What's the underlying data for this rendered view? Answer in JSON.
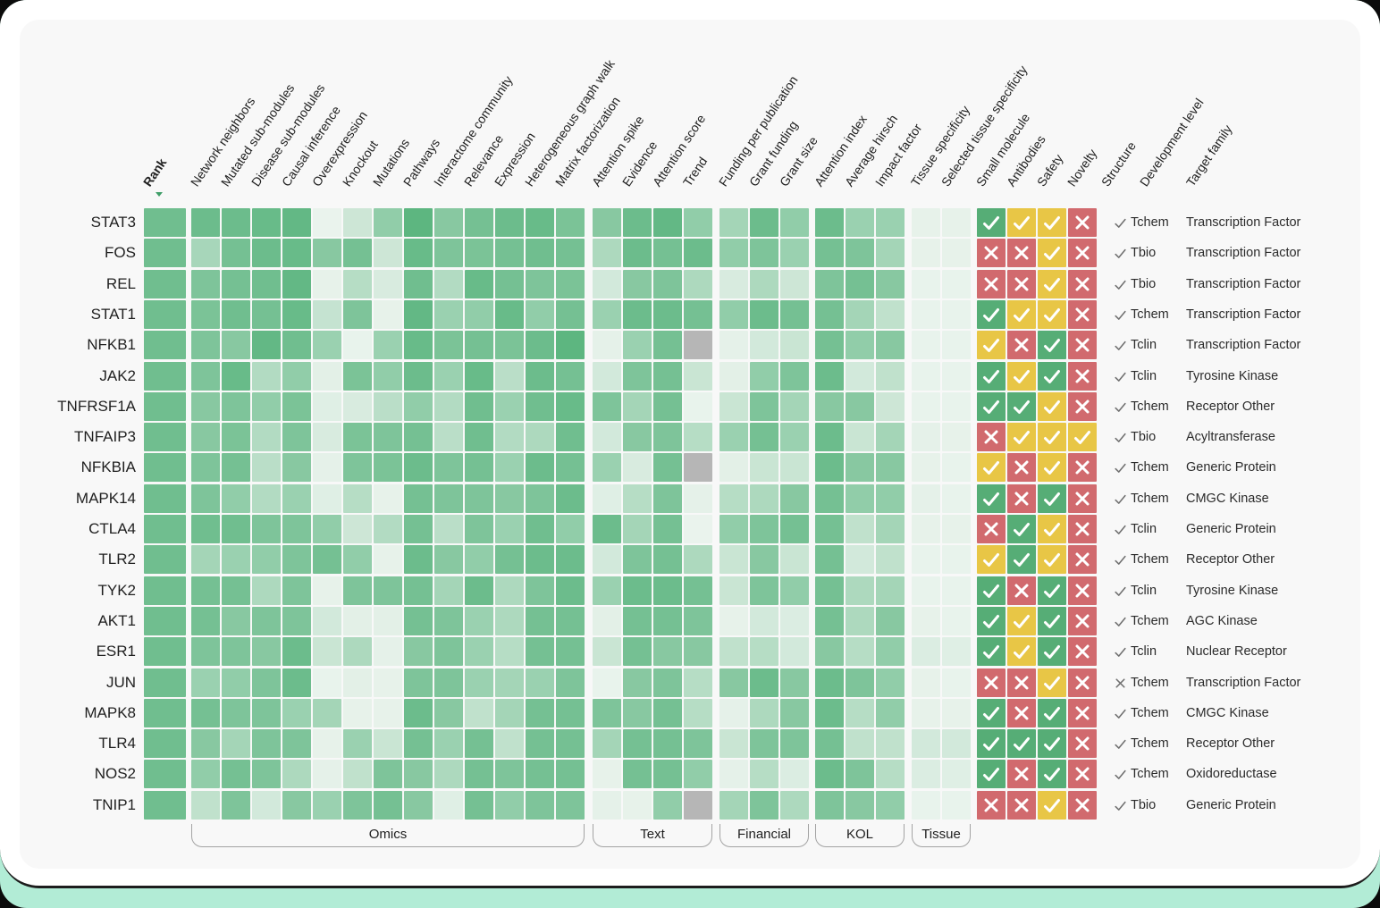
{
  "colors": {
    "frame_mint": "#b2ecd6",
    "card": "#ffffff",
    "surface": "#f8f8f8",
    "card_border": "#1d1d1d",
    "heat_low": "#eef5f0",
    "heat_high": "#34a461",
    "missing_gray": "#b6b6b6",
    "indicator_green": "#56ad76",
    "indicator_yellow": "#e8c646",
    "indicator_red": "#d16a6e",
    "structure_icon": "#6f6f6f",
    "sort_arrow": "#3f9e68",
    "text_primary": "#1f1f1f",
    "bracket_border": "#a3a3a3"
  },
  "rank_column": {
    "label": "Rank",
    "sort_indicator": "desc"
  },
  "groups": [
    {
      "name": "Omics",
      "columns": [
        "Network neighbors",
        "Mutated sub-modules",
        "Disease sub-modules",
        "Causal inference",
        "Overexpression",
        "Knockout",
        "Mutations",
        "Pathways",
        "Interactome community",
        "Relevance",
        "Expression",
        "Heterogeneous graph walk",
        "Matrix factorization"
      ]
    },
    {
      "name": "Text",
      "columns": [
        "Attention spike",
        "Evidence",
        "Attention score",
        "Trend"
      ]
    },
    {
      "name": "Financial",
      "columns": [
        "Funding per publication",
        "Grant funding",
        "Grant size"
      ]
    },
    {
      "name": "KOL",
      "columns": [
        "Attention index",
        "Average hirsch",
        "Impact factor"
      ]
    },
    {
      "name": "Tissue",
      "columns": [
        "Tissue specificity",
        "Selected tissue specificity"
      ]
    }
  ],
  "indicator_columns": [
    "Small molecule",
    "Antibodies",
    "Safety",
    "Novelty"
  ],
  "meta_columns": [
    "Structure",
    "Development level",
    "Target family"
  ],
  "rows": [
    {
      "gene": "STAT3",
      "rank": 0.68,
      "omics": [
        0.7,
        0.7,
        0.72,
        0.75,
        0.02,
        0.18,
        0.5,
        0.78,
        0.55,
        0.65,
        0.7,
        0.72,
        0.62
      ],
      "text": [
        0.55,
        0.7,
        0.75,
        0.5
      ],
      "financial": [
        0.4,
        0.7,
        0.5
      ],
      "kol": [
        0.7,
        0.45,
        0.45
      ],
      "tissue": [
        0.04,
        0.04
      ],
      "indicators": [
        "green-check",
        "yellow-check",
        "yellow-check",
        "red-cross"
      ],
      "structure": "check",
      "development_level": "Tchem",
      "target_family": "Transcription Factor"
    },
    {
      "gene": "FOS",
      "rank": 0.68,
      "omics": [
        0.38,
        0.65,
        0.7,
        0.72,
        0.55,
        0.65,
        0.18,
        0.72,
        0.6,
        0.62,
        0.65,
        0.68,
        0.65
      ],
      "text": [
        0.35,
        0.7,
        0.65,
        0.7
      ],
      "financial": [
        0.5,
        0.6,
        0.45
      ],
      "kol": [
        0.65,
        0.6,
        0.4
      ],
      "tissue": [
        0.04,
        0.04
      ],
      "indicators": [
        "red-cross",
        "red-cross",
        "yellow-check",
        "red-cross"
      ],
      "structure": "check",
      "development_level": "Tbio",
      "target_family": "Transcription Factor"
    },
    {
      "gene": "REL",
      "rank": 0.68,
      "omics": [
        0.6,
        0.65,
        0.68,
        0.75,
        0.04,
        0.3,
        0.12,
        0.68,
        0.32,
        0.72,
        0.65,
        0.6,
        0.62
      ],
      "text": [
        0.15,
        0.55,
        0.6,
        0.35
      ],
      "financial": [
        0.12,
        0.35,
        0.18
      ],
      "kol": [
        0.6,
        0.65,
        0.55
      ],
      "tissue": [
        0.03,
        0.03
      ],
      "indicators": [
        "red-cross",
        "red-cross",
        "yellow-check",
        "red-cross"
      ],
      "structure": "check",
      "development_level": "Tbio",
      "target_family": "Transcription Factor"
    },
    {
      "gene": "STAT1",
      "rank": 0.68,
      "omics": [
        0.62,
        0.68,
        0.65,
        0.72,
        0.22,
        0.6,
        0.04,
        0.75,
        0.45,
        0.5,
        0.72,
        0.5,
        0.65
      ],
      "text": [
        0.45,
        0.7,
        0.7,
        0.65
      ],
      "financial": [
        0.5,
        0.7,
        0.65
      ],
      "kol": [
        0.65,
        0.4,
        0.25
      ],
      "tissue": [
        0.03,
        0.03
      ],
      "indicators": [
        "green-check",
        "yellow-check",
        "yellow-check",
        "red-cross"
      ],
      "structure": "check",
      "development_level": "Tchem",
      "target_family": "Transcription Factor"
    },
    {
      "gene": "NFKB1",
      "rank": 0.68,
      "omics": [
        0.6,
        0.55,
        0.75,
        0.68,
        0.45,
        0.03,
        0.45,
        0.72,
        0.62,
        0.65,
        0.62,
        0.7,
        0.78
      ],
      "text": [
        0.05,
        0.45,
        0.65,
        null
      ],
      "financial": [
        0.05,
        0.15,
        0.2
      ],
      "kol": [
        0.65,
        0.5,
        0.55
      ],
      "tissue": [
        0.03,
        0.03
      ],
      "indicators": [
        "yellow-check",
        "red-cross",
        "green-check",
        "red-cross"
      ],
      "structure": "check",
      "development_level": "Tclin",
      "target_family": "Transcription Factor"
    },
    {
      "gene": "JAK2",
      "rank": 0.68,
      "omics": [
        0.6,
        0.72,
        0.32,
        0.5,
        0.06,
        0.62,
        0.5,
        0.7,
        0.45,
        0.72,
        0.28,
        0.7,
        0.65
      ],
      "text": [
        0.15,
        0.6,
        0.65,
        0.2
      ],
      "financial": [
        0.06,
        0.5,
        0.6
      ],
      "kol": [
        0.7,
        0.15,
        0.25
      ],
      "tissue": [
        0.03,
        0.03
      ],
      "indicators": [
        "green-check",
        "yellow-check",
        "green-check",
        "red-cross"
      ],
      "structure": "check",
      "development_level": "Tclin",
      "target_family": "Tyrosine Kinase"
    },
    {
      "gene": "TNFRSF1A",
      "rank": 0.68,
      "omics": [
        0.55,
        0.6,
        0.5,
        0.62,
        0.08,
        0.12,
        0.28,
        0.5,
        0.32,
        0.68,
        0.45,
        0.68,
        0.72
      ],
      "text": [
        0.6,
        0.4,
        0.65,
        0.03
      ],
      "financial": [
        0.2,
        0.6,
        0.4
      ],
      "kol": [
        0.55,
        0.55,
        0.18
      ],
      "tissue": [
        0.03,
        0.03
      ],
      "indicators": [
        "green-check",
        "green-check",
        "yellow-check",
        "red-cross"
      ],
      "structure": "check",
      "development_level": "Tchem",
      "target_family": "Receptor Other"
    },
    {
      "gene": "TNFAIP3",
      "rank": 0.68,
      "omics": [
        0.55,
        0.62,
        0.32,
        0.6,
        0.12,
        0.62,
        0.6,
        0.65,
        0.28,
        0.68,
        0.32,
        0.35,
        0.68
      ],
      "text": [
        0.15,
        0.55,
        0.6,
        0.3
      ],
      "financial": [
        0.45,
        0.65,
        0.45
      ],
      "kol": [
        0.7,
        0.2,
        0.4
      ],
      "tissue": [
        0.05,
        0.04
      ],
      "indicators": [
        "red-cross",
        "yellow-check",
        "yellow-check",
        "yellow-check"
      ],
      "structure": "check",
      "development_level": "Tbio",
      "target_family": "Acyltransferase"
    },
    {
      "gene": "NFKBIA",
      "rank": 0.68,
      "omics": [
        0.6,
        0.65,
        0.28,
        0.55,
        0.05,
        0.6,
        0.62,
        0.7,
        0.6,
        0.65,
        0.45,
        0.7,
        0.65
      ],
      "text": [
        0.45,
        0.12,
        0.65,
        null
      ],
      "financial": [
        0.06,
        0.2,
        0.2
      ],
      "kol": [
        0.7,
        0.55,
        0.55
      ],
      "tissue": [
        0.04,
        0.03
      ],
      "indicators": [
        "yellow-check",
        "red-cross",
        "yellow-check",
        "red-cross"
      ],
      "structure": "check",
      "development_level": "Tchem",
      "target_family": "Generic Protein"
    },
    {
      "gene": "MAPK14",
      "rank": 0.68,
      "omics": [
        0.6,
        0.5,
        0.32,
        0.45,
        0.08,
        0.3,
        0.04,
        0.65,
        0.6,
        0.6,
        0.55,
        0.6,
        0.7
      ],
      "text": [
        0.08,
        0.3,
        0.6,
        0.05
      ],
      "financial": [
        0.3,
        0.35,
        0.55
      ],
      "kol": [
        0.65,
        0.5,
        0.5
      ],
      "tissue": [
        0.05,
        0.03
      ],
      "indicators": [
        "green-check",
        "red-cross",
        "green-check",
        "red-cross"
      ],
      "structure": "check",
      "development_level": "Tchem",
      "target_family": "CMGC Kinase"
    },
    {
      "gene": "CTLA4",
      "rank": 0.68,
      "omics": [
        0.68,
        0.68,
        0.6,
        0.6,
        0.5,
        0.18,
        0.32,
        0.65,
        0.28,
        0.6,
        0.45,
        0.68,
        0.5
      ],
      "text": [
        0.7,
        0.4,
        0.65,
        0.02
      ],
      "financial": [
        0.5,
        0.6,
        0.65
      ],
      "kol": [
        0.65,
        0.25,
        0.4
      ],
      "tissue": [
        0.04,
        0.04
      ],
      "indicators": [
        "red-cross",
        "green-check",
        "yellow-check",
        "red-cross"
      ],
      "structure": "check",
      "development_level": "Tclin",
      "target_family": "Generic Protein"
    },
    {
      "gene": "TLR2",
      "rank": 0.68,
      "omics": [
        0.4,
        0.45,
        0.5,
        0.6,
        0.65,
        0.5,
        0.04,
        0.7,
        0.55,
        0.5,
        0.65,
        0.7,
        0.7
      ],
      "text": [
        0.15,
        0.6,
        0.65,
        0.35
      ],
      "financial": [
        0.2,
        0.55,
        0.2
      ],
      "kol": [
        0.65,
        0.15,
        0.25
      ],
      "tissue": [
        0.03,
        0.03
      ],
      "indicators": [
        "yellow-check",
        "green-check",
        "yellow-check",
        "red-cross"
      ],
      "structure": "check",
      "development_level": "Tchem",
      "target_family": "Receptor Other"
    },
    {
      "gene": "TYK2",
      "rank": 0.68,
      "omics": [
        0.65,
        0.65,
        0.35,
        0.6,
        0.04,
        0.6,
        0.6,
        0.65,
        0.4,
        0.7,
        0.35,
        0.6,
        0.7
      ],
      "text": [
        0.45,
        0.7,
        0.7,
        0.65
      ],
      "financial": [
        0.2,
        0.6,
        0.5
      ],
      "kol": [
        0.65,
        0.35,
        0.4
      ],
      "tissue": [
        0.03,
        0.03
      ],
      "indicators": [
        "green-check",
        "red-cross",
        "green-check",
        "red-cross"
      ],
      "structure": "check",
      "development_level": "Tclin",
      "target_family": "Tyrosine Kinase"
    },
    {
      "gene": "AKT1",
      "rank": 0.68,
      "omics": [
        0.65,
        0.55,
        0.6,
        0.6,
        0.15,
        0.06,
        0.06,
        0.65,
        0.6,
        0.45,
        0.35,
        0.65,
        0.65
      ],
      "text": [
        0.06,
        0.65,
        0.65,
        0.6
      ],
      "financial": [
        0.04,
        0.15,
        0.1
      ],
      "kol": [
        0.65,
        0.35,
        0.55
      ],
      "tissue": [
        0.04,
        0.03
      ],
      "indicators": [
        "green-check",
        "yellow-check",
        "green-check",
        "red-cross"
      ],
      "structure": "check",
      "development_level": "Tchem",
      "target_family": "AGC Kinase"
    },
    {
      "gene": "ESR1",
      "rank": 0.68,
      "omics": [
        0.6,
        0.6,
        0.55,
        0.7,
        0.2,
        0.35,
        0.05,
        0.55,
        0.6,
        0.45,
        0.3,
        0.65,
        0.65
      ],
      "text": [
        0.2,
        0.65,
        0.55,
        0.55
      ],
      "financial": [
        0.25,
        0.3,
        0.15
      ],
      "kol": [
        0.55,
        0.3,
        0.5
      ],
      "tissue": [
        0.1,
        0.08
      ],
      "indicators": [
        "green-check",
        "yellow-check",
        "green-check",
        "red-cross"
      ],
      "structure": "check",
      "development_level": "Tclin",
      "target_family": "Nuclear Receptor"
    },
    {
      "gene": "JUN",
      "rank": 0.68,
      "omics": [
        0.45,
        0.5,
        0.6,
        0.7,
        0.03,
        0.06,
        0.04,
        0.6,
        0.6,
        0.45,
        0.4,
        0.45,
        0.6
      ],
      "text": [
        0.03,
        0.55,
        0.6,
        0.3
      ],
      "financial": [
        0.55,
        0.7,
        0.55
      ],
      "kol": [
        0.7,
        0.6,
        0.5
      ],
      "tissue": [
        0.04,
        0.03
      ],
      "indicators": [
        "red-cross",
        "red-cross",
        "yellow-check",
        "red-cross"
      ],
      "structure": "cross",
      "development_level": "Tchem",
      "target_family": "Transcription Factor"
    },
    {
      "gene": "MAPK8",
      "rank": 0.68,
      "omics": [
        0.65,
        0.6,
        0.6,
        0.45,
        0.4,
        0.04,
        0.04,
        0.7,
        0.55,
        0.25,
        0.4,
        0.65,
        0.65
      ],
      "text": [
        0.6,
        0.55,
        0.65,
        0.3
      ],
      "financial": [
        0.05,
        0.35,
        0.55
      ],
      "kol": [
        0.7,
        0.3,
        0.5
      ],
      "tissue": [
        0.04,
        0.04
      ],
      "indicators": [
        "green-check",
        "red-cross",
        "green-check",
        "red-cross"
      ],
      "structure": "check",
      "development_level": "Tchem",
      "target_family": "CMGC Kinase"
    },
    {
      "gene": "TLR4",
      "rank": 0.68,
      "omics": [
        0.55,
        0.4,
        0.6,
        0.6,
        0.04,
        0.45,
        0.2,
        0.65,
        0.45,
        0.65,
        0.25,
        0.65,
        0.65
      ],
      "text": [
        0.4,
        0.65,
        0.65,
        0.6
      ],
      "financial": [
        0.2,
        0.6,
        0.6
      ],
      "kol": [
        0.65,
        0.25,
        0.25
      ],
      "tissue": [
        0.15,
        0.15
      ],
      "indicators": [
        "green-check",
        "green-check",
        "green-check",
        "red-cross"
      ],
      "structure": "check",
      "development_level": "Tchem",
      "target_family": "Receptor Other"
    },
    {
      "gene": "NOS2",
      "rank": 0.68,
      "omics": [
        0.5,
        0.65,
        0.6,
        0.35,
        0.05,
        0.25,
        0.6,
        0.55,
        0.35,
        0.65,
        0.6,
        0.65,
        0.65
      ],
      "text": [
        0.04,
        0.65,
        0.65,
        0.5
      ],
      "financial": [
        0.05,
        0.3,
        0.1
      ],
      "kol": [
        0.7,
        0.6,
        0.3
      ],
      "tissue": [
        0.1,
        0.08
      ],
      "indicators": [
        "green-check",
        "red-cross",
        "green-check",
        "red-cross"
      ],
      "structure": "check",
      "development_level": "Tchem",
      "target_family": "Oxidoreductase"
    },
    {
      "gene": "TNIP1",
      "rank": 0.68,
      "omics": [
        0.25,
        0.6,
        0.15,
        0.55,
        0.45,
        0.6,
        0.65,
        0.55,
        0.08,
        0.65,
        0.5,
        0.6,
        0.6
      ],
      "text": [
        0.05,
        0.04,
        0.5,
        null
      ],
      "financial": [
        0.4,
        0.6,
        0.35
      ],
      "kol": [
        0.6,
        0.55,
        0.5
      ],
      "tissue": [
        0.03,
        0.03
      ],
      "indicators": [
        "red-cross",
        "red-cross",
        "yellow-check",
        "red-cross"
      ],
      "structure": "check",
      "development_level": "Tbio",
      "target_family": "Generic Protein"
    }
  ]
}
